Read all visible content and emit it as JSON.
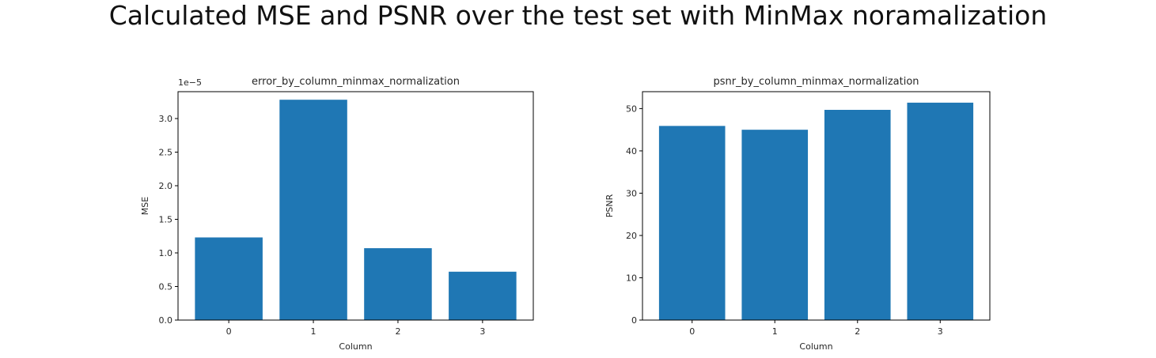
{
  "page": {
    "title": "Calculated MSE and PSNR over the test set with MinMax noramalization"
  },
  "chart_data": [
    {
      "type": "bar",
      "title": "error_by_column_minmax_normalization",
      "xlabel": "Column",
      "ylabel": "MSE",
      "categories": [
        "0",
        "1",
        "2",
        "3"
      ],
      "values": [
        1.23e-05,
        3.28e-05,
        1.07e-05,
        7.2e-06
      ],
      "ylim": [
        0,
        3.4e-05
      ],
      "yticks": [
        0,
        0.5,
        1.0,
        1.5,
        2.0,
        2.5,
        3.0
      ],
      "ytick_labels": [
        "0.0",
        "0.5",
        "1.0",
        "1.5",
        "2.0",
        "2.5",
        "3.0"
      ],
      "y_scale_multiplier": 1e-05,
      "offset_label": "1e−5",
      "bar_color": "#1f77b4",
      "grid": false,
      "legend": "none"
    },
    {
      "type": "bar",
      "title": "psnr_by_column_minmax_normalization",
      "xlabel": "Column",
      "ylabel": "PSNR",
      "categories": [
        "0",
        "1",
        "2",
        "3"
      ],
      "values": [
        45.9,
        45.0,
        49.7,
        51.4
      ],
      "ylim": [
        0,
        54
      ],
      "yticks": [
        0,
        10,
        20,
        30,
        40,
        50
      ],
      "ytick_labels": [
        "0",
        "10",
        "20",
        "30",
        "40",
        "50"
      ],
      "y_scale_multiplier": 1,
      "offset_label": "",
      "bar_color": "#1f77b4",
      "grid": false,
      "legend": "none"
    }
  ]
}
